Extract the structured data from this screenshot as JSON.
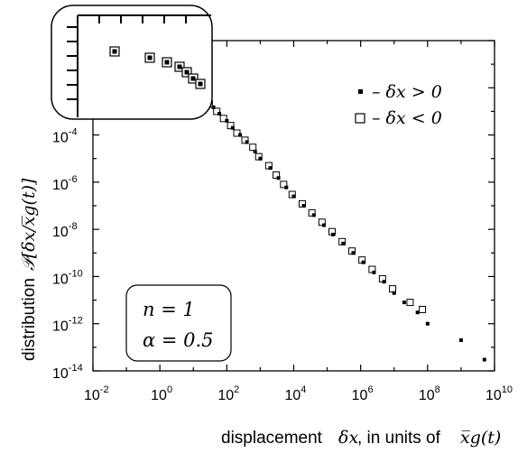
{
  "chart_data": {
    "type": "scatter",
    "xscale": "log",
    "yscale": "log",
    "xlim": [
      0.01,
      10000000000
    ],
    "ylim": [
      1e-14,
      1
    ],
    "x_ticks": [
      {
        "base": "10",
        "exp": "-2",
        "value": 0.01
      },
      {
        "base": "10",
        "exp": "0",
        "value": 1
      },
      {
        "base": "10",
        "exp": "2",
        "value": 100
      },
      {
        "base": "10",
        "exp": "4",
        "value": 10000
      },
      {
        "base": "10",
        "exp": "6",
        "value": 1000000
      },
      {
        "base": "10",
        "exp": "8",
        "value": 100000000
      },
      {
        "base": "10",
        "exp": "10",
        "value": 10000000000
      }
    ],
    "y_ticks": [
      {
        "base": "10",
        "exp": "-4",
        "value": 0.0001
      },
      {
        "base": "10",
        "exp": "-6",
        "value": 1e-06
      },
      {
        "base": "10",
        "exp": "-8",
        "value": 1e-08
      },
      {
        "base": "10",
        "exp": "-10",
        "value": 1e-10
      },
      {
        "base": "10",
        "exp": "-12",
        "value": 1e-12
      },
      {
        "base": "10",
        "exp": "-14",
        "value": 1e-14
      }
    ],
    "xlabel_prefix": "displacement",
    "xlabel_math": "δx",
    "xlabel_mid": ", in units of",
    "xlabel_math2": "x̅g(t)",
    "ylabel_prefix": "distribution",
    "ylabel_math": "𝒫[δx/x̅g(t)]",
    "series": [
      {
        "name": "δx > 0",
        "marker": "filled-square",
        "legend_prefix": "▪ –",
        "points": [
          [
            0.025,
            0.3
          ],
          [
            0.3,
            0.15
          ],
          [
            1.2,
            0.09
          ],
          [
            2.5,
            0.06
          ],
          [
            4,
            0.04
          ],
          [
            6,
            0.025
          ],
          [
            10,
            0.012
          ],
          [
            15,
            0.006
          ],
          [
            25,
            0.003
          ],
          [
            40,
            0.0015
          ],
          [
            60,
            0.0008
          ],
          [
            100,
            0.0004
          ],
          [
            150,
            0.0002
          ],
          [
            250,
            0.0001
          ],
          [
            400,
            5e-05
          ],
          [
            700,
            2e-05
          ],
          [
            1000,
            1e-05
          ],
          [
            2000,
            4e-06
          ],
          [
            3500,
            1.5e-06
          ],
          [
            6000,
            6e-07
          ],
          [
            10000,
            2.5e-07
          ],
          [
            20000,
            1e-07
          ],
          [
            40000,
            4e-08
          ],
          [
            80000,
            1.5e-08
          ],
          [
            150000,
            6e-09
          ],
          [
            300000,
            2.5e-09
          ],
          [
            600000,
            1e-09
          ],
          [
            1200000,
            4e-10
          ],
          [
            2500000,
            1.5e-10
          ],
          [
            5000000,
            6e-11
          ],
          [
            10000000,
            2e-11
          ],
          [
            20000000,
            8e-12
          ],
          [
            50000000,
            3e-12
          ],
          [
            100000000,
            1e-12
          ],
          [
            1000000000,
            2e-13
          ],
          [
            5000000000,
            3e-14
          ]
        ]
      },
      {
        "name": "δx < 0",
        "marker": "open-square",
        "legend_prefix": "□ –",
        "points": [
          [
            0.025,
            0.3
          ],
          [
            0.3,
            0.15
          ],
          [
            1.2,
            0.09
          ],
          [
            2.5,
            0.06
          ],
          [
            4,
            0.04
          ],
          [
            6,
            0.025
          ],
          [
            12,
            0.01
          ],
          [
            20,
            0.004
          ],
          [
            30,
            0.002
          ],
          [
            50,
            0.001
          ],
          [
            80,
            0.0005
          ],
          [
            130,
            0.00025
          ],
          [
            200,
            0.00012
          ],
          [
            350,
            6e-05
          ],
          [
            600,
            3e-05
          ],
          [
            900,
            1.2e-05
          ],
          [
            1800,
            5e-06
          ],
          [
            3000,
            2e-06
          ],
          [
            5000,
            8e-07
          ],
          [
            9000,
            3e-07
          ],
          [
            18000,
            1.2e-07
          ],
          [
            35000,
            5e-08
          ],
          [
            70000,
            2e-08
          ],
          [
            140000,
            8e-09
          ],
          [
            280000,
            3e-09
          ],
          [
            550000,
            1.2e-09
          ],
          [
            1100000,
            5e-10
          ],
          [
            2200000,
            2e-10
          ],
          [
            4500000,
            8e-11
          ],
          [
            9000000,
            3e-11
          ],
          [
            30000000,
            8e-12
          ],
          [
            70000000,
            4e-12
          ]
        ]
      }
    ],
    "legend_placement": "top-right",
    "legend": [
      {
        "marker_glyph": "▪",
        "math": "– δx > 0"
      },
      {
        "marker_glyph": "□",
        "math": "– δx < 0"
      }
    ],
    "annotation": {
      "line1": "n = 1",
      "line2": "α = 0.5"
    }
  }
}
